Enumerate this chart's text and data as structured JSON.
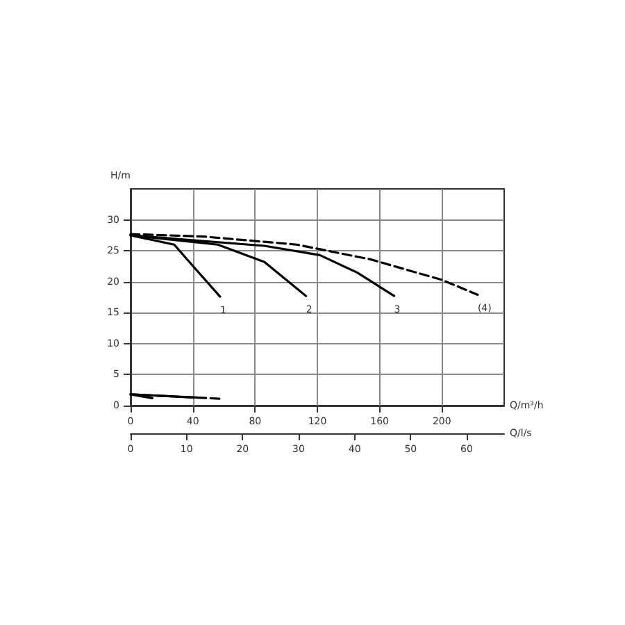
{
  "chart_data": {
    "type": "line",
    "xlabel": "Q/m³/h",
    "x2label": "Q/l/s",
    "ylabel": "H/m",
    "xlim": [
      0,
      240
    ],
    "xticks": [
      0,
      40,
      80,
      120,
      160,
      200
    ],
    "x2lim": [
      0,
      66.7
    ],
    "x2ticks": [
      0,
      10,
      20,
      30,
      40,
      50,
      60
    ],
    "ylim": [
      0,
      35
    ],
    "yticks": [
      0,
      5,
      10,
      15,
      20,
      25,
      30
    ],
    "grid": true,
    "legend": false,
    "marker": "none",
    "series": [
      {
        "name": "1",
        "color": "#000000",
        "line_style": "solid",
        "x": [
          0,
          28,
          43,
          57.5
        ],
        "values": [
          27.5,
          26,
          21.7,
          17.6
        ]
      },
      {
        "name": "2",
        "color": "#000000",
        "line_style": "solid",
        "x": [
          0,
          56,
          86,
          112.7
        ],
        "values": [
          27.5,
          26,
          23.2,
          17.7
        ]
      },
      {
        "name": "3",
        "color": "#000000",
        "line_style": "solid",
        "x": [
          0,
          86,
          121.6,
          145.5,
          169.3
        ],
        "values": [
          27.5,
          25.8,
          24.3,
          21.5,
          17.7
        ]
      },
      {
        "name": "(4)",
        "color": "#000000",
        "line_style": "dashed",
        "x": [
          0,
          47,
          106.7,
          154.4,
          200,
          223
        ],
        "values": [
          27.7,
          27.3,
          26,
          23.6,
          20.3,
          17.9
        ]
      },
      {
        "color": "#000000",
        "line_style": "solid",
        "x": [
          0,
          14
        ],
        "values": [
          1.8,
          1.2
        ]
      },
      {
        "color": "#000000",
        "line_style": "solid",
        "x": [
          0,
          42.6
        ],
        "values": [
          1.8,
          1.3
        ]
      },
      {
        "color": "#000000",
        "line_style": "dashed",
        "x": [
          0,
          57.5
        ],
        "values": [
          1.8,
          1.1
        ]
      }
    ]
  }
}
